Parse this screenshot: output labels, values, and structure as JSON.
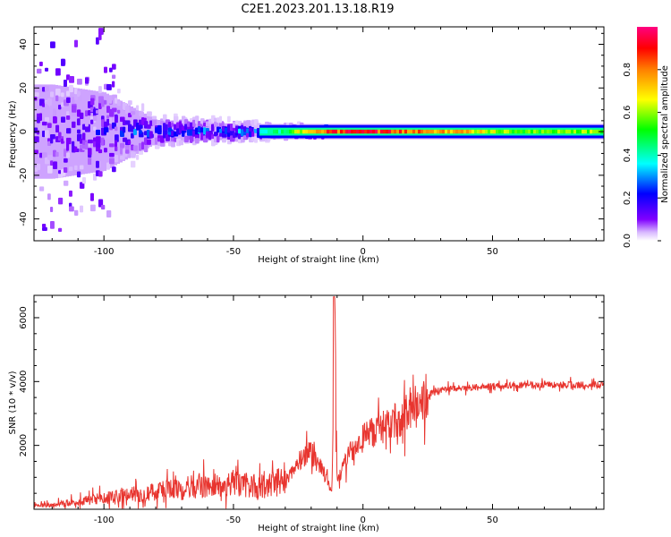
{
  "title": "C2E1.2023.201.13.18.R19",
  "chart_data": [
    {
      "type": "heatmap",
      "xlabel": "Height of straight line (km)",
      "ylabel": "Frequency (Hz)",
      "xlim": [
        -127,
        93
      ],
      "ylim": [
        -50,
        48
      ],
      "x_ticks": [
        -100,
        -50,
        0,
        50
      ],
      "y_ticks": [
        -40,
        -20,
        0,
        20,
        40
      ],
      "colorbar": {
        "label": "Normalized spectral amplitude",
        "range": [
          0.0,
          1.0
        ],
        "ticks": [
          "0.0",
          "0.2",
          "0.4",
          "0.6",
          "0.8"
        ],
        "tick_values": [
          0.0,
          0.2,
          0.4,
          0.6,
          0.8
        ],
        "colormap": "gist_rainbow_r (white at 0)"
      },
      "description_points": [
        {
          "x": -120,
          "spread_hz": 48,
          "amp": 0.15
        },
        {
          "x": -100,
          "spread_hz": 40,
          "amp": 0.25
        },
        {
          "x": -80,
          "spread_hz": 12,
          "amp": 0.3
        },
        {
          "x": -50,
          "spread_hz": 8,
          "amp": 0.35
        },
        {
          "x": -30,
          "spread_hz": 4,
          "amp": 0.45
        },
        {
          "x": -20,
          "spread_hz": 2,
          "amp": 0.85
        },
        {
          "x": 0,
          "spread_hz": 2,
          "amp": 0.9
        },
        {
          "x": 30,
          "spread_hz": 1.5,
          "amp": 0.8
        },
        {
          "x": 60,
          "spread_hz": 1.5,
          "amp": 0.55
        },
        {
          "x": 90,
          "spread_hz": 1.5,
          "amp": 0.6
        }
      ]
    },
    {
      "type": "line",
      "xlabel": "Height of straight line (km)",
      "ylabel": "SNR (10 * v/v)",
      "xlim": [
        -127,
        93
      ],
      "ylim": [
        0,
        6700
      ],
      "x_ticks": [
        -100,
        -50,
        0,
        50
      ],
      "y_ticks": [
        2000,
        4000,
        6000
      ],
      "color": "#e8352f",
      "series": [
        {
          "x": [
            -127,
            -120,
            -110,
            -100,
            -90,
            -80,
            -70,
            -60,
            -50,
            -40,
            -30,
            -25,
            -20,
            -15,
            -12,
            -11,
            -10,
            -5,
            0,
            5,
            10,
            15,
            20,
            25,
            30,
            40,
            50,
            60,
            70,
            80,
            93
          ],
          "values": [
            100,
            150,
            250,
            350,
            450,
            550,
            650,
            750,
            800,
            700,
            900,
            1500,
            1800,
            1100,
            500,
            6650,
            800,
            1800,
            2200,
            2500,
            2600,
            2900,
            3300,
            3600,
            3750,
            3800,
            3850,
            3880,
            3900,
            3900,
            3900
          ]
        }
      ]
    }
  ]
}
